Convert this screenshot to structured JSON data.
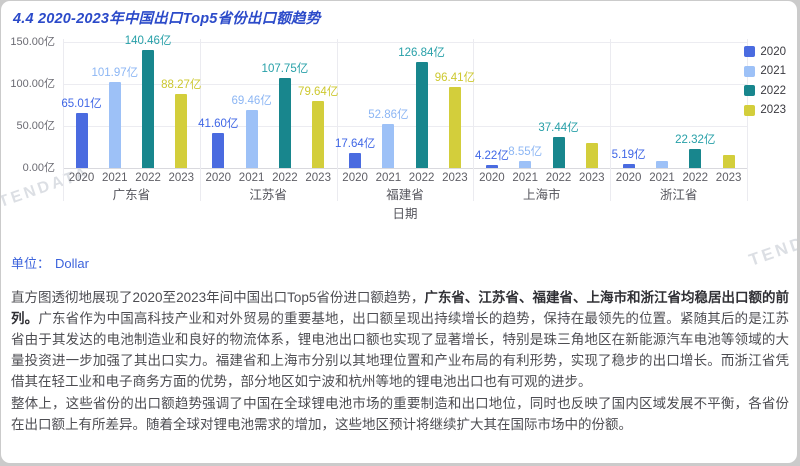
{
  "title": "4.4 2020-2023年中国出口Top5省份出口额趋势",
  "watermark": "TENDATA",
  "unit": {
    "label": "单位：",
    "value": "Dollar"
  },
  "chart_data": {
    "type": "bar",
    "xlabel": "日期",
    "ylabel": "",
    "ylim": [
      0,
      150
    ],
    "grid": true,
    "legend_position": "top-right",
    "yticks": [
      {
        "value": 0,
        "label": "0.00亿"
      },
      {
        "value": 50,
        "label": "50.00亿"
      },
      {
        "value": 100,
        "label": "100.00亿"
      },
      {
        "value": 150,
        "label": "150.00亿"
      }
    ],
    "categories": [
      "广东省",
      "江苏省",
      "福建省",
      "上海市",
      "浙江省"
    ],
    "series": [
      {
        "name": "2020",
        "color": "#4a6be0",
        "label_color": "#3f66e6",
        "values": [
          65.01,
          41.6,
          17.64,
          4.22,
          5.19
        ],
        "labels": [
          "65.01亿",
          "41.60亿",
          "17.64亿",
          "4.22亿",
          "5.19亿"
        ]
      },
      {
        "name": "2021",
        "color": "#9dc1f7",
        "label_color": "#8cb6f4",
        "values": [
          101.97,
          69.46,
          52.86,
          8.55,
          8.4
        ],
        "labels": [
          "101.97亿",
          "69.46亿",
          "52.86亿",
          "8.55亿",
          ""
        ]
      },
      {
        "name": "2022",
        "color": "#18868d",
        "label_color": "#27a0a8",
        "values": [
          140.46,
          107.75,
          126.84,
          37.44,
          22.32
        ],
        "labels": [
          "140.46亿",
          "107.75亿",
          "126.84亿",
          "37.44亿",
          "22.32亿"
        ]
      },
      {
        "name": "2023",
        "color": "#d3ce3b",
        "label_color": "#cdc82f",
        "values": [
          88.27,
          79.64,
          96.41,
          30.0,
          16.0
        ],
        "labels": [
          "88.27亿",
          "79.64亿",
          "96.41亿",
          "",
          ""
        ]
      }
    ]
  },
  "paragraphs": [
    {
      "segments": [
        {
          "bold": false,
          "text": "直方图透彻地展现了2020至2023年间中国出口Top5省份进口额趋势，"
        },
        {
          "bold": true,
          "text": "广东省、江苏省、福建省、上海市和浙江省均稳居出口额的前列。"
        },
        {
          "bold": false,
          "text": "广东省作为中国高科技产业和对外贸易的重要基地，出口额呈现出持续增长的趋势，保持在最领先的位置。紧随其后的是江苏省由于其发达的电池制造业和良好的物流体系，锂电池出口额也实现了显著增长，特别是珠三角地区在新能源汽车电池等领域的大量投资进一步加强了其出口实力。福建省和上海市分别以其地理位置和产业布局的有利形势，实现了稳步的出口增长。而浙江省凭借其在轻工业和电子商务方面的优势，部分地区如宁波和杭州等地的锂电池出口也有可观的进步。"
        }
      ]
    },
    {
      "segments": [
        {
          "bold": false,
          "text": "整体上，这些省份的出口额趋势强调了中国在全球锂电池市场的重要制造和出口地位，同时也反映了国内区域发展不平衡，各省份在出口额上有所差异。随着全球对锂电池需求的增加，这些地区预计将继续扩大其在国际市场中的份额。"
        }
      ]
    }
  ]
}
